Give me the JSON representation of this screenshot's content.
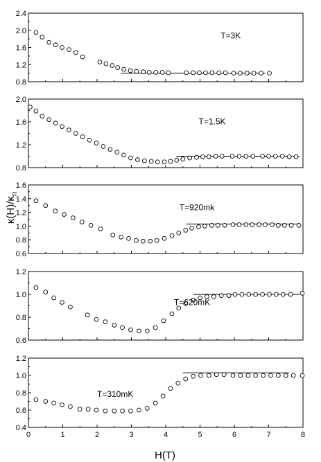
{
  "chart_data": {
    "type": "scatter",
    "x_label": "H(T)",
    "y_label": "κ(H)/κn",
    "y_label_main": "κ(H)/κ",
    "y_label_sub": "n",
    "x_ticks": [
      "0",
      "1",
      "2",
      "3",
      "4",
      "5",
      "6",
      "7",
      "8"
    ],
    "xlim": [
      0,
      8
    ],
    "panels": [
      {
        "annotation": "T=3K",
        "ylim": [
          0.8,
          2.4
        ],
        "y_ticks": [
          "0.8",
          "1.2",
          "1.6",
          "2.0",
          "2.4"
        ],
        "points": [
          [
            0.22,
            1.95
          ],
          [
            0.4,
            1.84
          ],
          [
            0.6,
            1.72
          ],
          [
            0.79,
            1.66
          ],
          [
            0.98,
            1.6
          ],
          [
            1.18,
            1.55
          ],
          [
            1.38,
            1.48
          ],
          [
            1.58,
            1.38
          ],
          [
            2.08,
            1.26
          ],
          [
            2.26,
            1.22
          ],
          [
            2.44,
            1.18
          ],
          [
            2.6,
            1.13
          ],
          [
            2.78,
            1.09
          ],
          [
            2.97,
            1.06
          ],
          [
            3.15,
            1.04
          ],
          [
            3.35,
            1.03
          ],
          [
            3.52,
            1.02
          ],
          [
            3.71,
            1.02
          ],
          [
            3.9,
            1.02
          ],
          [
            4.08,
            1.01
          ],
          [
            4.6,
            1.01
          ],
          [
            4.8,
            1.01
          ],
          [
            4.98,
            1.01
          ],
          [
            5.16,
            1.01
          ],
          [
            5.35,
            1.01
          ],
          [
            5.55,
            1.01
          ],
          [
            5.74,
            1.01
          ],
          [
            5.98,
            1.0
          ],
          [
            6.17,
            1.0
          ],
          [
            6.37,
            1.0
          ],
          [
            6.57,
            1.0
          ],
          [
            6.78,
            1.0
          ],
          [
            7.02,
            1.0
          ]
        ],
        "line": [
          [
            2.7,
            1.0
          ],
          [
            6.9,
            1.0
          ]
        ]
      },
      {
        "annotation": "T=1.5K",
        "ylim": [
          0.8,
          2.0
        ],
        "y_ticks": [
          "0.8",
          "1.2",
          "1.6",
          "2.0"
        ],
        "points": [
          [
            0.05,
            1.86
          ],
          [
            0.22,
            1.79
          ],
          [
            0.4,
            1.7
          ],
          [
            0.6,
            1.64
          ],
          [
            0.79,
            1.58
          ],
          [
            0.98,
            1.52
          ],
          [
            1.18,
            1.46
          ],
          [
            1.38,
            1.4
          ],
          [
            1.58,
            1.34
          ],
          [
            1.78,
            1.28
          ],
          [
            1.98,
            1.23
          ],
          [
            2.18,
            1.17
          ],
          [
            2.38,
            1.12
          ],
          [
            2.58,
            1.07
          ],
          [
            2.78,
            1.02
          ],
          [
            2.98,
            0.97
          ],
          [
            3.18,
            0.94
          ],
          [
            3.38,
            0.92
          ],
          [
            3.58,
            0.91
          ],
          [
            3.76,
            0.9
          ],
          [
            3.96,
            0.9
          ],
          [
            4.14,
            0.91
          ],
          [
            4.32,
            0.93
          ],
          [
            4.5,
            0.95
          ],
          [
            4.7,
            0.97
          ],
          [
            4.9,
            0.98
          ],
          [
            5.08,
            0.99
          ],
          [
            5.26,
            0.99
          ],
          [
            5.46,
            1.0
          ],
          [
            5.64,
            1.0
          ],
          [
            5.94,
            1.0
          ],
          [
            6.14,
            1.0
          ],
          [
            6.34,
            1.0
          ],
          [
            6.54,
            1.0
          ],
          [
            6.82,
            1.0
          ],
          [
            7.0,
            1.0
          ],
          [
            7.2,
            1.0
          ],
          [
            7.4,
            1.0
          ],
          [
            7.6,
            0.99
          ],
          [
            7.8,
            0.99
          ]
        ],
        "line": [
          [
            4.3,
            1.0
          ],
          [
            7.9,
            1.0
          ]
        ]
      },
      {
        "annotation": "T=920mk",
        "ylim": [
          0.6,
          1.6
        ],
        "y_ticks": [
          "0.6",
          "0.8",
          "1.0",
          "1.2",
          "1.4",
          "1.6"
        ],
        "points": [
          [
            0.22,
            1.37
          ],
          [
            0.5,
            1.3
          ],
          [
            0.78,
            1.22
          ],
          [
            1.04,
            1.17
          ],
          [
            1.3,
            1.12
          ],
          [
            1.56,
            1.06
          ],
          [
            1.82,
            1.01
          ],
          [
            2.1,
            0.96
          ],
          [
            2.46,
            0.87
          ],
          [
            2.7,
            0.84
          ],
          [
            2.92,
            0.82
          ],
          [
            3.14,
            0.79
          ],
          [
            3.34,
            0.78
          ],
          [
            3.55,
            0.78
          ],
          [
            3.74,
            0.79
          ],
          [
            3.96,
            0.82
          ],
          [
            4.18,
            0.86
          ],
          [
            4.38,
            0.9
          ],
          [
            4.58,
            0.94
          ],
          [
            4.76,
            0.97
          ],
          [
            4.96,
            0.99
          ],
          [
            5.14,
            1.0
          ],
          [
            5.34,
            1.01
          ],
          [
            5.52,
            1.01
          ],
          [
            5.72,
            1.01
          ],
          [
            5.96,
            1.02
          ],
          [
            6.14,
            1.02
          ],
          [
            6.34,
            1.02
          ],
          [
            6.52,
            1.02
          ],
          [
            6.72,
            1.02
          ],
          [
            6.9,
            1.02
          ],
          [
            7.1,
            1.02
          ],
          [
            7.28,
            1.01
          ],
          [
            7.46,
            1.01
          ],
          [
            7.66,
            1.01
          ],
          [
            7.88,
            1.01
          ]
        ],
        "line": [
          [
            4.6,
            1.03
          ],
          [
            7.9,
            1.03
          ]
        ]
      },
      {
        "annotation": "T=620mK",
        "ylim": [
          0.6,
          1.2
        ],
        "y_ticks": [
          "0.6",
          "0.8",
          "1.0",
          "1.2"
        ],
        "points": [
          [
            0.22,
            1.06
          ],
          [
            0.5,
            1.02
          ],
          [
            0.74,
            0.97
          ],
          [
            0.98,
            0.93
          ],
          [
            1.22,
            0.89
          ],
          [
            1.72,
            0.82
          ],
          [
            1.98,
            0.78
          ],
          [
            2.24,
            0.76
          ],
          [
            2.5,
            0.73
          ],
          [
            2.74,
            0.71
          ],
          [
            2.98,
            0.69
          ],
          [
            3.22,
            0.68
          ],
          [
            3.46,
            0.68
          ],
          [
            3.7,
            0.71
          ],
          [
            3.94,
            0.77
          ],
          [
            4.18,
            0.83
          ],
          [
            4.38,
            0.88
          ],
          [
            4.58,
            0.92
          ],
          [
            4.8,
            0.95
          ],
          [
            5.0,
            0.97
          ],
          [
            5.2,
            0.98
          ],
          [
            5.4,
            0.98
          ],
          [
            5.62,
            0.99
          ],
          [
            5.84,
            0.99
          ],
          [
            6.02,
            1.0
          ],
          [
            6.22,
            1.0
          ],
          [
            6.42,
            1.0
          ],
          [
            6.62,
            1.0
          ],
          [
            6.82,
            1.0
          ],
          [
            7.02,
            1.0
          ],
          [
            7.22,
            1.0
          ],
          [
            7.42,
            1.0
          ],
          [
            7.64,
            1.0
          ],
          [
            7.98,
            1.01
          ]
        ],
        "line": [
          [
            4.8,
            1.0
          ],
          [
            7.9,
            1.0
          ]
        ]
      },
      {
        "annotation": "T=310mK",
        "ylim": [
          0.4,
          1.2
        ],
        "y_ticks": [
          "0.4",
          "0.6",
          "0.8",
          "1.0",
          "1.2"
        ],
        "points": [
          [
            0.22,
            0.72
          ],
          [
            0.5,
            0.7
          ],
          [
            0.74,
            0.68
          ],
          [
            0.98,
            0.66
          ],
          [
            1.22,
            0.64
          ],
          [
            1.5,
            0.61
          ],
          [
            1.74,
            0.61
          ],
          [
            1.98,
            0.6
          ],
          [
            2.24,
            0.59
          ],
          [
            2.5,
            0.59
          ],
          [
            2.74,
            0.59
          ],
          [
            2.98,
            0.59
          ],
          [
            3.22,
            0.6
          ],
          [
            3.46,
            0.62
          ],
          [
            3.7,
            0.68
          ],
          [
            3.92,
            0.76
          ],
          [
            4.14,
            0.85
          ],
          [
            4.36,
            0.91
          ],
          [
            4.58,
            0.96
          ],
          [
            4.8,
            0.99
          ],
          [
            5.02,
            1.0
          ],
          [
            5.26,
            1.0
          ],
          [
            5.48,
            1.01
          ],
          [
            5.7,
            1.01
          ],
          [
            5.96,
            1.0
          ],
          [
            6.18,
            1.0
          ],
          [
            6.4,
            1.0
          ],
          [
            6.62,
            1.0
          ],
          [
            6.84,
            1.0
          ],
          [
            7.06,
            1.0
          ],
          [
            7.28,
            1.0
          ],
          [
            7.5,
            1.0
          ],
          [
            7.72,
            1.0
          ],
          [
            7.98,
            1.0
          ]
        ],
        "line": [
          [
            4.5,
            1.03
          ],
          [
            7.6,
            1.03
          ]
        ]
      }
    ]
  }
}
